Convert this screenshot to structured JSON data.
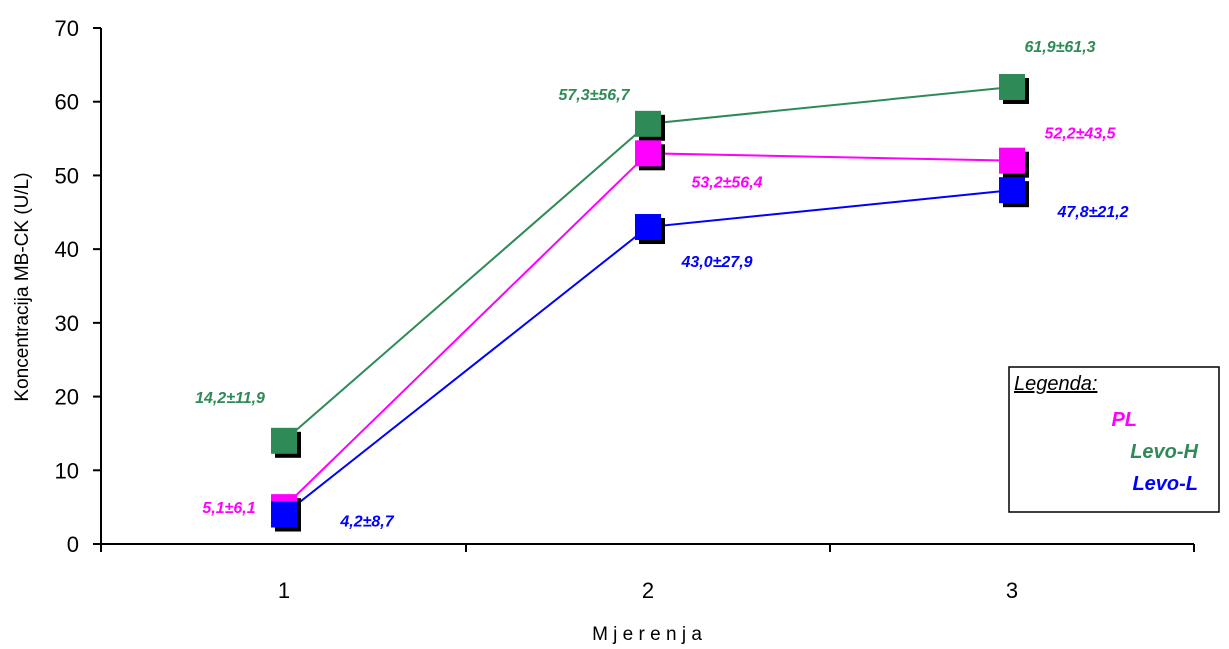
{
  "chart_data": {
    "type": "line",
    "title": "",
    "xlabel": "M j e r e n j a",
    "ylabel": "Koncentracija MB-CK (U/L)",
    "categories": [
      "1",
      "2",
      "3"
    ],
    "ylim": [
      0,
      70
    ],
    "yticks": [
      0,
      10,
      20,
      30,
      40,
      50,
      60,
      70
    ],
    "grid": false,
    "legend": {
      "title": "Legenda:",
      "placement": "right",
      "entries": [
        "PL",
        "Levo-H",
        "Levo-L"
      ]
    },
    "series": [
      {
        "name": "Levo-H",
        "color": "#2e8b57",
        "values": [
          14,
          57,
          62
        ],
        "labels": [
          "14,2±11,9",
          "57,3±56,7",
          "61,9±61,3"
        ]
      },
      {
        "name": "PL",
        "color": "#ff00ff",
        "values": [
          5,
          53,
          52
        ],
        "labels": [
          "5,1±6,1",
          "53,2±56,4",
          "52,2±43,5"
        ]
      },
      {
        "name": "Levo-L",
        "color": "#0000ff",
        "values": [
          4,
          43,
          48
        ],
        "labels": [
          "4,2±8,7",
          "43,0±27,9",
          "47,8±21,2"
        ]
      }
    ]
  }
}
